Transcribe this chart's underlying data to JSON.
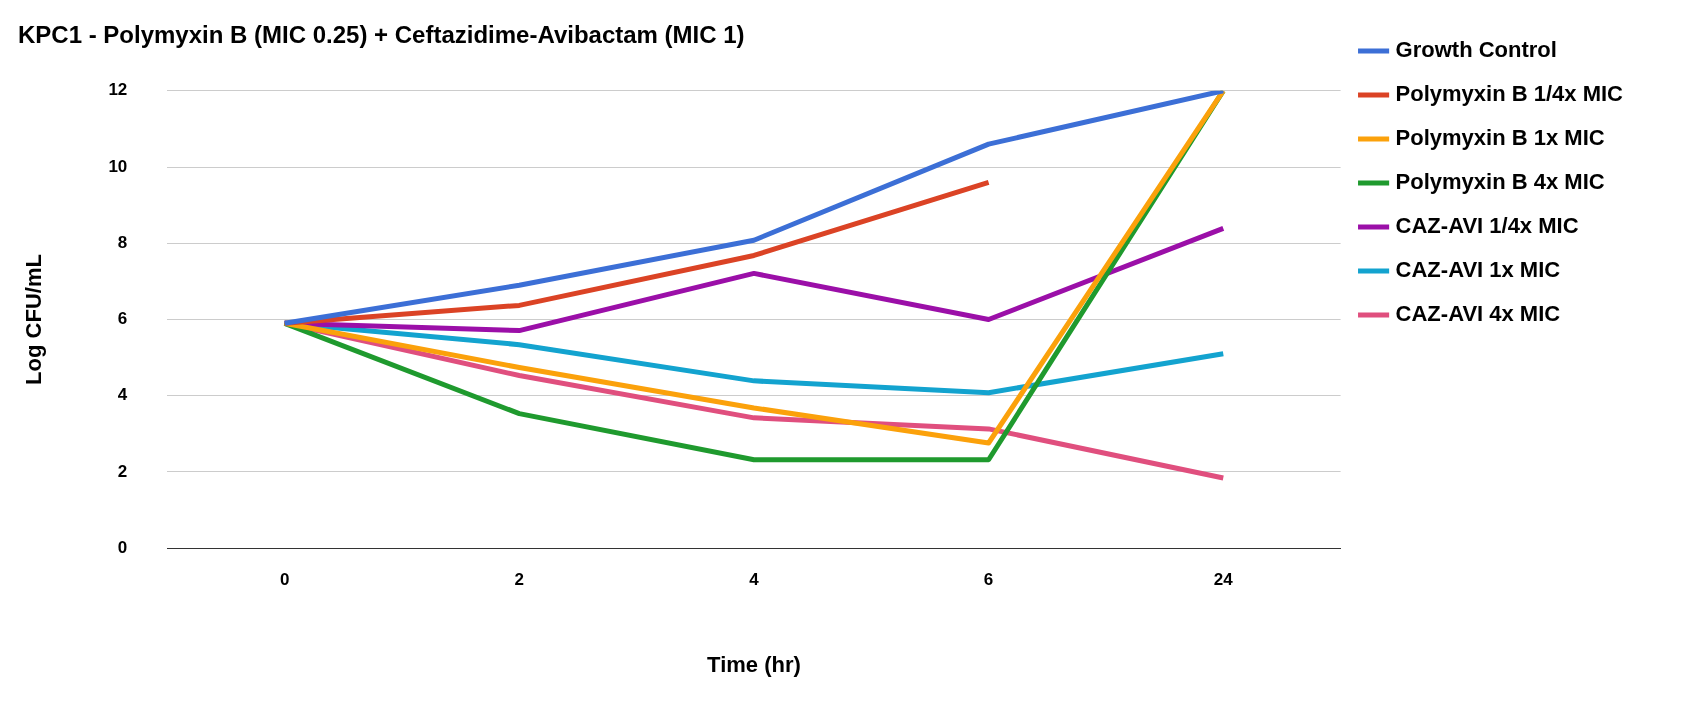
{
  "chart_data": {
    "type": "line",
    "title": "KPC1 - Polymyxin B (MIC 0.25) + Ceftazidime-Avibactam (MIC 1)",
    "xlabel": "Time (hr)",
    "ylabel": "Log CFU/mL",
    "categories": [
      "0",
      "2",
      "4",
      "6",
      "24"
    ],
    "series": [
      {
        "name": "Growth Control",
        "color": "#3c6fd6",
        "values": [
          5.9,
          6.9,
          8.08,
          10.6,
          12
        ]
      },
      {
        "name": "Polymyxin B 1/4x MIC",
        "color": "#db4325",
        "values": [
          5.9,
          6.37,
          7.68,
          9.6,
          null
        ]
      },
      {
        "name": "Polymyxin B 1x MIC",
        "color": "#fba10b",
        "values": [
          5.9,
          4.74,
          3.68,
          2.76,
          12
        ]
      },
      {
        "name": "Polymyxin B 4x MIC",
        "color": "#1f9a2e",
        "values": [
          5.9,
          3.53,
          2.32,
          2.32,
          12
        ]
      },
      {
        "name": "CAZ-AVI 1/4x MIC",
        "color": "#9b0fa8",
        "values": [
          5.9,
          5.71,
          7.21,
          6.0,
          8.39
        ]
      },
      {
        "name": "CAZ-AVI 1x MIC",
        "color": "#13a3cf",
        "values": [
          5.9,
          5.34,
          4.39,
          4.08,
          5.1
        ]
      },
      {
        "name": "CAZ-AVI 4x MIC",
        "color": "#e04f7e",
        "values": [
          5.9,
          4.53,
          3.42,
          3.13,
          1.84
        ]
      }
    ],
    "ylim": [
      0,
      12
    ],
    "yticks": [
      0,
      2,
      4,
      6,
      8,
      10,
      12
    ],
    "grid": "y",
    "legend": "right",
    "marker": "none",
    "line_style": "solid"
  }
}
